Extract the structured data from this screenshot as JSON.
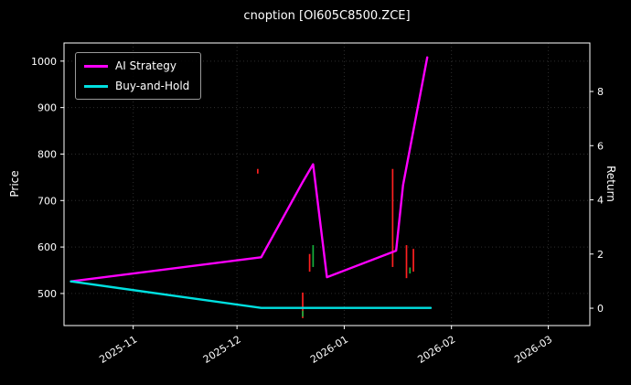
{
  "chart_data": {
    "type": "line",
    "title": "cnoption [OI605C8500.ZCE]",
    "ylabel_left": "Price",
    "ylabel_right": "Return",
    "background": "#000000",
    "grid": true,
    "legend_position": "upper-left",
    "x_ticks": [
      "2025-11",
      "2025-12",
      "2026-01",
      "2026-02",
      "2026-03"
    ],
    "y_ticks_left": [
      500,
      600,
      700,
      800,
      900,
      1000
    ],
    "y_ticks_right": [
      0,
      2,
      4,
      6,
      8
    ],
    "ylim_left": [
      431,
      1039
    ],
    "ylim_right": [
      -0.64,
      9.79
    ],
    "xlim": [
      "2025-10-12",
      "2026-03-13"
    ],
    "series": [
      {
        "name": "AI Strategy",
        "color": "#ff00ff",
        "axis": "left",
        "points": [
          [
            "2025-10-14",
            526
          ],
          [
            "2025-12-08",
            578
          ],
          [
            "2025-12-20",
            740
          ],
          [
            "2025-12-23",
            778
          ],
          [
            "2025-12-27",
            535
          ],
          [
            "2026-01-16",
            592
          ],
          [
            "2026-01-18",
            733
          ],
          [
            "2026-01-25",
            1008
          ]
        ]
      },
      {
        "name": "Buy-and-Hold",
        "color": "#00e0e0",
        "axis": "left",
        "points": [
          [
            "2025-10-14",
            526
          ],
          [
            "2025-12-08",
            469
          ],
          [
            "2026-01-26",
            469
          ]
        ]
      }
    ],
    "candles": [
      {
        "date": "2025-12-07",
        "low": 758,
        "high": 768,
        "color": "#ff2020"
      },
      {
        "date": "2025-12-20",
        "low": 447,
        "high": 502,
        "color": "#ff2020"
      },
      {
        "date": "2025-12-20",
        "low": 450,
        "high": 463,
        "color": "#16b03c"
      },
      {
        "date": "2025-12-22",
        "low": 547,
        "high": 585,
        "color": "#ff2020"
      },
      {
        "date": "2025-12-23",
        "low": 557,
        "high": 604,
        "color": "#16b03c"
      },
      {
        "date": "2026-01-15",
        "low": 557,
        "high": 768,
        "color": "#ff2020"
      },
      {
        "date": "2026-01-19",
        "low": 533,
        "high": 604,
        "color": "#ff2020"
      },
      {
        "date": "2026-01-20",
        "low": 543,
        "high": 556,
        "color": "#16b03c"
      },
      {
        "date": "2026-01-21",
        "low": 547,
        "high": 596,
        "color": "#ff2020"
      }
    ]
  }
}
